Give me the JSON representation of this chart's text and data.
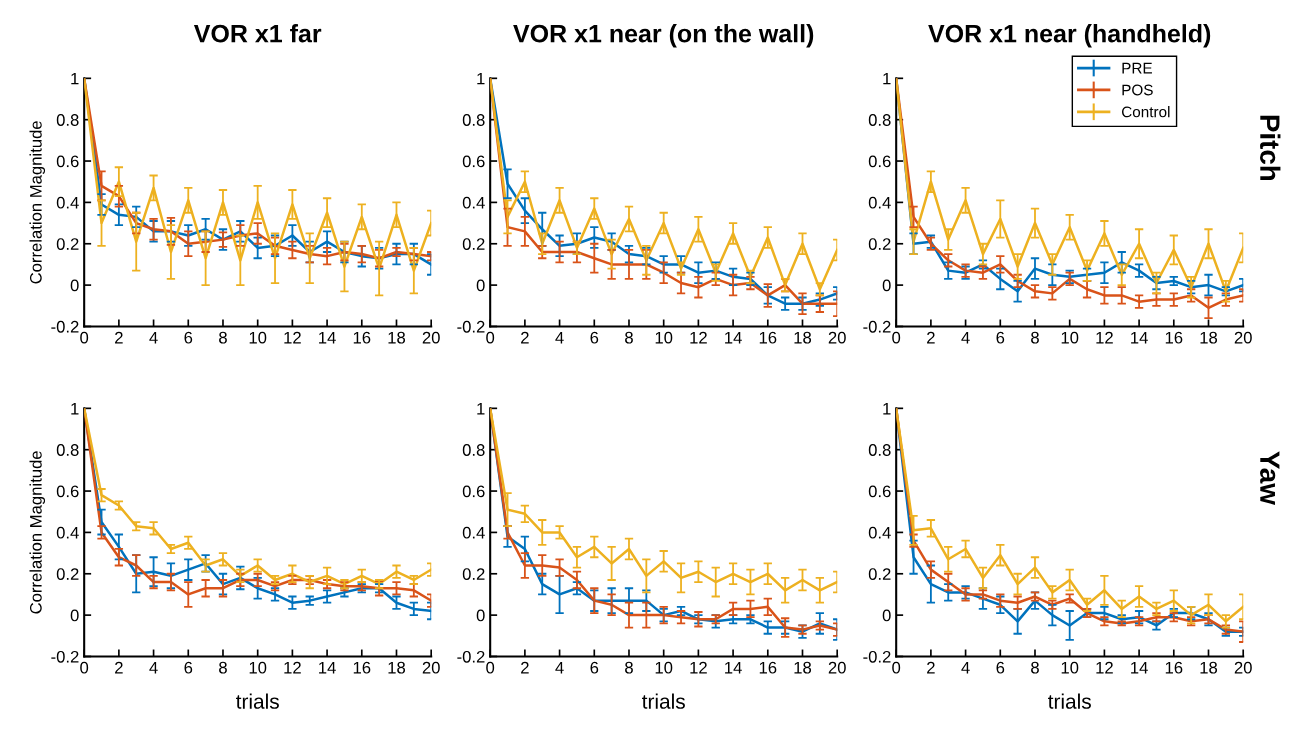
{
  "chart_data": [
    {
      "type": "line",
      "title": "VOR x1 far",
      "ylabel": "Correlation Magnitude",
      "x": [
        0,
        1,
        2,
        3,
        4,
        5,
        6,
        7,
        8,
        9,
        10,
        11,
        12,
        13,
        14,
        15,
        16,
        17,
        18,
        19,
        20
      ],
      "xlim": [
        0,
        20
      ],
      "ylim": [
        -0.2,
        1
      ],
      "xticks": [
        0,
        2,
        4,
        6,
        8,
        10,
        12,
        14,
        16,
        18,
        20
      ],
      "yticks": [
        -0.2,
        0,
        0.2,
        0.4,
        0.6,
        0.8,
        1
      ],
      "grid": false,
      "series": [
        {
          "color": "#0072bd",
          "values": [
            1,
            0.39,
            0.34,
            0.33,
            0.26,
            0.26,
            0.24,
            0.27,
            0.22,
            0.26,
            0.18,
            0.19,
            0.24,
            0.16,
            0.21,
            0.16,
            0.14,
            0.13,
            0.15,
            0.15,
            0.1
          ],
          "errors": [
            null,
            0.05,
            0.05,
            0.05,
            0.05,
            0.05,
            0.05,
            0.05,
            0.05,
            0.05,
            0.05,
            0.05,
            0.05,
            0.05,
            0.05,
            0.05,
            0.05,
            0.05,
            0.05,
            0.05,
            0.05
          ]
        },
        {
          "color": "#d95319",
          "values": [
            1,
            0.48,
            0.43,
            0.3,
            0.27,
            0.26,
            0.2,
            0.21,
            0.22,
            0.24,
            0.25,
            0.19,
            0.17,
            0.15,
            0.14,
            0.16,
            0.15,
            0.13,
            0.16,
            0.15,
            0.14
          ],
          "errors": [
            null,
            0.07,
            0.05,
            0.05,
            0.05,
            0.065,
            0.06,
            0.05,
            0.035,
            0.05,
            0.05,
            0.04,
            0.04,
            0.04,
            0.04,
            0.04,
            0.04,
            0.04,
            0.02,
            0.03,
            0.02
          ]
        },
        {
          "color": "#edb120",
          "values": [
            1,
            0.3,
            0.5,
            0.21,
            0.47,
            0.16,
            0.41,
            0.13,
            0.4,
            0.12,
            0.4,
            0.13,
            0.39,
            0.13,
            0.35,
            0.09,
            0.33,
            0.08,
            0.34,
            0.07,
            0.3
          ],
          "errors": [
            null,
            0.11,
            0.07,
            0.14,
            0.06,
            0.13,
            0.06,
            0.13,
            0.06,
            0.12,
            0.08,
            0.12,
            0.07,
            0.12,
            0.07,
            0.12,
            0.06,
            0.13,
            0.06,
            0.11,
            0.06
          ]
        }
      ]
    },
    {
      "type": "line",
      "title": "VOR x1 near (on the wall)",
      "x": [
        0,
        1,
        2,
        3,
        4,
        5,
        6,
        7,
        8,
        9,
        10,
        11,
        12,
        13,
        14,
        15,
        16,
        17,
        18,
        19,
        20
      ],
      "xlim": [
        0,
        20
      ],
      "ylim": [
        -0.2,
        1
      ],
      "xticks": [
        0,
        2,
        4,
        6,
        8,
        10,
        12,
        14,
        16,
        18,
        20
      ],
      "yticks": [
        -0.2,
        0,
        0.2,
        0.4,
        0.6,
        0.8,
        1
      ],
      "grid": false,
      "series": [
        {
          "color": "#0072bd",
          "values": [
            1,
            0.49,
            0.36,
            0.27,
            0.19,
            0.2,
            0.23,
            0.21,
            0.15,
            0.14,
            0.1,
            0.1,
            0.06,
            0.07,
            0.04,
            0.03,
            -0.05,
            -0.09,
            -0.09,
            -0.07,
            -0.04
          ],
          "errors": [
            null,
            0.07,
            0.06,
            0.08,
            0.05,
            0.05,
            0.05,
            0.04,
            0.04,
            0.04,
            0.04,
            0.04,
            0.05,
            0.04,
            0.04,
            0.03,
            0.04,
            0.03,
            0.03,
            0.03,
            0.03
          ]
        },
        {
          "color": "#d95319",
          "values": [
            1,
            0.28,
            0.26,
            0.16,
            0.16,
            0.16,
            0.13,
            0.1,
            0.1,
            0.1,
            0.06,
            0.01,
            -0.01,
            0.03,
            0.0,
            0.01,
            -0.05,
            0.0,
            -0.09,
            -0.09,
            -0.09
          ],
          "errors": [
            null,
            0.09,
            0.07,
            0.03,
            0.05,
            0.05,
            0.07,
            0.07,
            0.07,
            0.07,
            0.05,
            0.05,
            0.05,
            0.03,
            0.05,
            0.03,
            0.055,
            0.03,
            0.05,
            0.04,
            0.06
          ]
        },
        {
          "color": "#edb120",
          "values": [
            1,
            0.33,
            0.5,
            0.2,
            0.41,
            0.18,
            0.37,
            0.15,
            0.32,
            0.12,
            0.3,
            0.08,
            0.27,
            0.06,
            0.25,
            0.04,
            0.23,
            0.0,
            0.2,
            -0.02,
            0.17
          ],
          "errors": [
            null,
            0.08,
            0.05,
            0.05,
            0.06,
            0.03,
            0.05,
            0.07,
            0.06,
            0.07,
            0.05,
            0.03,
            0.06,
            0.04,
            0.05,
            0.03,
            0.05,
            0.03,
            0.05,
            0.03,
            0.05
          ]
        }
      ]
    },
    {
      "type": "line",
      "title": "VOR x1 near (handheld)",
      "annotations": [
        "Pitch"
      ],
      "legend": "top right",
      "x": [
        0,
        1,
        2,
        3,
        4,
        5,
        6,
        7,
        8,
        9,
        10,
        11,
        12,
        13,
        14,
        15,
        16,
        17,
        18,
        19,
        20
      ],
      "xlim": [
        0,
        20
      ],
      "ylim": [
        -0.2,
        1
      ],
      "xticks": [
        0,
        2,
        4,
        6,
        8,
        10,
        12,
        14,
        16,
        18,
        20
      ],
      "yticks": [
        -0.2,
        0,
        0.2,
        0.4,
        0.6,
        0.8,
        1
      ],
      "grid": false,
      "series": [
        {
          "name": "PRE",
          "color": "#0072bd",
          "values": [
            1,
            0.2,
            0.21,
            0.07,
            0.06,
            0.1,
            0.03,
            -0.03,
            0.08,
            0.05,
            0.04,
            0.05,
            0.06,
            0.11,
            0.07,
            0.01,
            0.02,
            -0.01,
            0.0,
            -0.03,
            0.0
          ],
          "errors": [
            null,
            0.05,
            0.03,
            0.04,
            0.03,
            0.02,
            0.05,
            0.05,
            0.05,
            0.05,
            0.03,
            0.03,
            0.05,
            0.05,
            0.03,
            0.03,
            0.02,
            0.03,
            0.05,
            0.02,
            0.03
          ]
        },
        {
          "name": "POS",
          "color": "#d95319",
          "values": [
            1,
            0.33,
            0.2,
            0.12,
            0.07,
            0.06,
            0.1,
            0.02,
            -0.03,
            -0.04,
            0.03,
            -0.02,
            -0.05,
            -0.05,
            -0.08,
            -0.07,
            -0.07,
            -0.05,
            -0.11,
            -0.07,
            -0.05
          ],
          "errors": [
            null,
            0.05,
            0.03,
            0.03,
            0.03,
            0.03,
            0.04,
            0.03,
            0.03,
            0.03,
            0.03,
            0.04,
            0.04,
            0.04,
            0.03,
            0.03,
            0.03,
            0.03,
            0.05,
            0.03,
            0.03
          ]
        },
        {
          "name": "Control",
          "color": "#edb120",
          "values": [
            1,
            0.21,
            0.5,
            0.22,
            0.41,
            0.15,
            0.32,
            0.09,
            0.3,
            0.1,
            0.28,
            0.07,
            0.25,
            0.05,
            0.2,
            0.01,
            0.17,
            -0.01,
            0.2,
            -0.03,
            0.18
          ],
          "errors": [
            null,
            0.06,
            0.05,
            0.05,
            0.06,
            0.05,
            0.09,
            0.06,
            0.07,
            0.05,
            0.06,
            0.05,
            0.06,
            0.05,
            0.07,
            0.05,
            0.07,
            0.05,
            0.07,
            0.05,
            0.07
          ]
        }
      ]
    },
    {
      "type": "line",
      "xlabel": "trials",
      "ylabel": "Correlation Magnitude",
      "x": [
        0,
        1,
        2,
        3,
        4,
        5,
        6,
        7,
        8,
        9,
        10,
        11,
        12,
        13,
        14,
        15,
        16,
        17,
        18,
        19,
        20
      ],
      "xlim": [
        0,
        20
      ],
      "ylim": [
        -0.2,
        1
      ],
      "xticks": [
        0,
        2,
        4,
        6,
        8,
        10,
        12,
        14,
        16,
        18,
        20
      ],
      "yticks": [
        -0.2,
        0,
        0.2,
        0.4,
        0.6,
        0.8,
        1
      ],
      "grid": false,
      "series": [
        {
          "color": "#0072bd",
          "values": [
            1,
            0.45,
            0.33,
            0.2,
            0.21,
            0.19,
            0.22,
            0.25,
            0.15,
            0.18,
            0.13,
            0.1,
            0.06,
            0.07,
            0.09,
            0.11,
            0.13,
            0.13,
            0.06,
            0.03,
            0.02
          ],
          "errors": [
            null,
            0.06,
            0.06,
            0.09,
            0.07,
            0.06,
            0.05,
            0.04,
            0.05,
            0.055,
            0.05,
            0.03,
            0.03,
            0.02,
            0.03,
            0.02,
            0.02,
            0.02,
            0.03,
            0.03,
            0.04
          ]
        },
        {
          "color": "#d95319",
          "values": [
            1,
            0.4,
            0.28,
            0.24,
            0.16,
            0.16,
            0.1,
            0.13,
            0.13,
            0.17,
            0.17,
            0.14,
            0.17,
            0.17,
            0.15,
            0.14,
            0.14,
            0.13,
            0.13,
            0.12,
            0.07
          ],
          "errors": [
            null,
            0.03,
            0.04,
            0.05,
            0.03,
            0.04,
            0.06,
            0.04,
            0.04,
            0.03,
            0.03,
            0.02,
            0.02,
            0.02,
            0.02,
            0.02,
            0.02,
            0.035,
            0.03,
            0.03,
            0.03
          ]
        },
        {
          "color": "#edb120",
          "values": [
            1,
            0.58,
            0.53,
            0.43,
            0.42,
            0.32,
            0.35,
            0.24,
            0.27,
            0.19,
            0.24,
            0.17,
            0.2,
            0.16,
            0.19,
            0.15,
            0.19,
            0.15,
            0.21,
            0.17,
            0.22
          ],
          "errors": [
            null,
            0.03,
            0.02,
            0.02,
            0.03,
            0.02,
            0.03,
            0.03,
            0.03,
            0.03,
            0.03,
            0.02,
            0.04,
            0.03,
            0.04,
            0.02,
            0.03,
            0.02,
            0.03,
            0.02,
            0.03
          ]
        }
      ]
    },
    {
      "type": "line",
      "xlabel": "trials",
      "x": [
        0,
        1,
        2,
        3,
        4,
        5,
        6,
        7,
        8,
        9,
        10,
        11,
        12,
        13,
        14,
        15,
        16,
        17,
        18,
        19,
        20
      ],
      "xlim": [
        0,
        20
      ],
      "ylim": [
        -0.2,
        1
      ],
      "xticks": [
        0,
        2,
        4,
        6,
        8,
        10,
        12,
        14,
        16,
        18,
        20
      ],
      "yticks": [
        -0.2,
        0,
        0.2,
        0.4,
        0.6,
        0.8,
        1
      ],
      "grid": false,
      "series": [
        {
          "color": "#0072bd",
          "values": [
            1,
            0.38,
            0.32,
            0.15,
            0.1,
            0.13,
            0.07,
            0.07,
            0.07,
            0.07,
            0.0,
            0.02,
            -0.02,
            -0.03,
            -0.02,
            -0.02,
            -0.06,
            -0.06,
            -0.08,
            -0.04,
            -0.07
          ],
          "errors": [
            null,
            0.05,
            0.06,
            0.05,
            0.09,
            0.03,
            0.05,
            0.06,
            0.06,
            0.05,
            0.03,
            0.02,
            0.02,
            0.03,
            0.02,
            0.02,
            0.03,
            0.03,
            0.03,
            0.05,
            0.05
          ]
        },
        {
          "color": "#d95319",
          "values": [
            1,
            0.4,
            0.24,
            0.24,
            0.23,
            0.17,
            0.07,
            0.05,
            0.0,
            0.0,
            0.0,
            -0.01,
            -0.02,
            -0.02,
            0.03,
            0.03,
            0.04,
            -0.06,
            -0.07,
            -0.05,
            -0.07
          ],
          "errors": [
            null,
            0.03,
            0.06,
            0.05,
            0.04,
            0.04,
            0.06,
            0.05,
            0.06,
            0.06,
            0.04,
            0.03,
            0.035,
            0.02,
            0.03,
            0.04,
            0.04,
            0.045,
            0.02,
            0.02,
            0.03
          ]
        },
        {
          "color": "#edb120",
          "values": [
            1,
            0.51,
            0.49,
            0.4,
            0.4,
            0.28,
            0.33,
            0.25,
            0.32,
            0.19,
            0.26,
            0.18,
            0.21,
            0.16,
            0.2,
            0.16,
            0.2,
            0.12,
            0.17,
            0.12,
            0.16
          ],
          "errors": [
            null,
            0.08,
            0.04,
            0.06,
            0.03,
            0.05,
            0.05,
            0.08,
            0.05,
            0.08,
            0.05,
            0.07,
            0.05,
            0.07,
            0.05,
            0.06,
            0.05,
            0.06,
            0.05,
            0.06,
            0.05
          ]
        }
      ]
    },
    {
      "type": "line",
      "xlabel": "trials",
      "annotations": [
        "Yaw"
      ],
      "x": [
        0,
        1,
        2,
        3,
        4,
        5,
        6,
        7,
        8,
        9,
        10,
        11,
        12,
        13,
        14,
        15,
        16,
        17,
        18,
        19,
        20
      ],
      "xlim": [
        0,
        20
      ],
      "ylim": [
        -0.2,
        1
      ],
      "xticks": [
        0,
        2,
        4,
        6,
        8,
        10,
        12,
        14,
        16,
        18,
        20
      ],
      "yticks": [
        -0.2,
        0,
        0.2,
        0.4,
        0.6,
        0.8,
        1
      ],
      "grid": false,
      "series": [
        {
          "color": "#0072bd",
          "values": [
            1,
            0.28,
            0.15,
            0.11,
            0.11,
            0.08,
            0.05,
            -0.03,
            0.07,
            0.0,
            -0.05,
            0.01,
            0.01,
            -0.02,
            -0.01,
            -0.05,
            0.01,
            0.01,
            -0.02,
            -0.08,
            -0.08
          ],
          "errors": [
            null,
            0.08,
            0.09,
            0.04,
            0.03,
            0.05,
            0.04,
            0.06,
            0.04,
            0.05,
            0.07,
            0.02,
            0.03,
            0.02,
            0.03,
            0.02,
            0.02,
            0.03,
            0.03,
            0.02,
            0.02
          ]
        },
        {
          "color": "#d95319",
          "values": [
            1,
            0.36,
            0.22,
            0.16,
            0.1,
            0.1,
            0.07,
            0.06,
            0.09,
            0.05,
            0.08,
            0.01,
            -0.03,
            -0.04,
            -0.03,
            -0.01,
            -0.01,
            -0.03,
            -0.02,
            -0.07,
            -0.08
          ],
          "errors": [
            null,
            0.03,
            0.04,
            0.04,
            0.03,
            0.02,
            0.03,
            0.03,
            0.02,
            0.02,
            0.02,
            0.02,
            0.02,
            0.01,
            0.02,
            0.02,
            0.02,
            0.02,
            0.02,
            0.02,
            0.05
          ]
        },
        {
          "color": "#edb120",
          "values": [
            1,
            0.41,
            0.42,
            0.27,
            0.32,
            0.18,
            0.29,
            0.15,
            0.23,
            0.11,
            0.17,
            0.05,
            0.12,
            0.03,
            0.09,
            0.03,
            0.07,
            0.0,
            0.05,
            -0.03,
            0.04
          ],
          "errors": [
            null,
            0.07,
            0.04,
            0.06,
            0.04,
            0.05,
            0.05,
            0.05,
            0.05,
            0.03,
            0.05,
            0.03,
            0.07,
            0.04,
            0.05,
            0.03,
            0.05,
            0.04,
            0.05,
            0.03,
            0.06
          ]
        }
      ]
    }
  ]
}
